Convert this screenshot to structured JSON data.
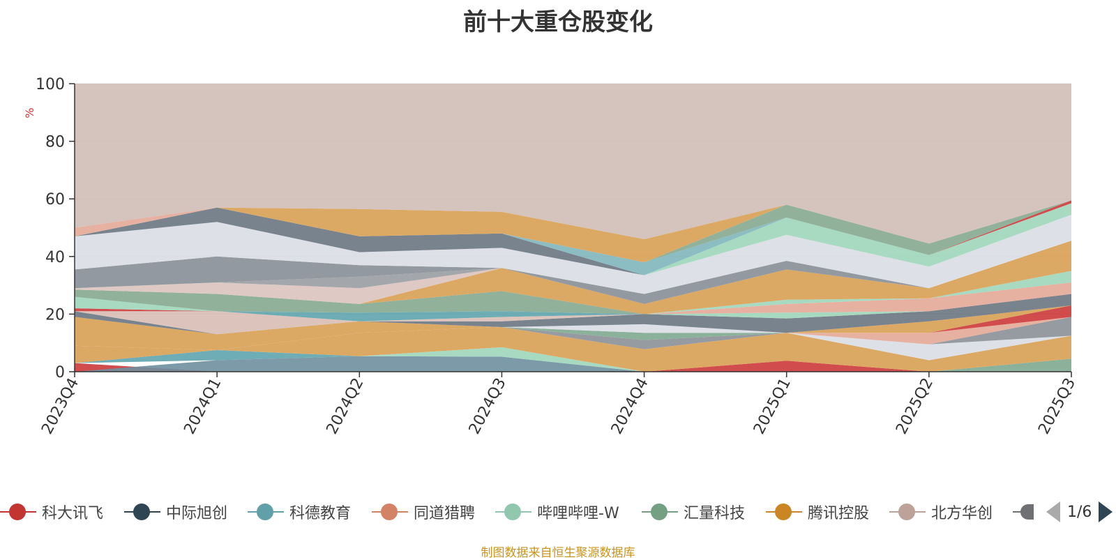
{
  "title": "前十大重仓股变化",
  "source_note": "制图数据来自恒生聚源数据库",
  "pager": {
    "text": "1/6"
  },
  "chart_data": {
    "type": "area",
    "title": "前十大重仓股变化",
    "ylabel": "%",
    "ylim": [
      0,
      100
    ],
    "yticks": [
      0,
      20,
      40,
      60,
      80,
      100
    ],
    "grid": true,
    "legend_placement": "bottom",
    "categories": [
      "2023Q4",
      "2024Q1",
      "2024Q2",
      "2024Q3",
      "2024Q4",
      "2025Q1",
      "2025Q2",
      "2025Q3"
    ],
    "bands": [
      {
        "color": "#cc3a3a",
        "lower": [
          0,
          0,
          0,
          0,
          0,
          0,
          0,
          0
        ],
        "upper": [
          3,
          0,
          0,
          0,
          0,
          3.8,
          0,
          0
        ]
      },
      {
        "color": "#6f8fa0",
        "lower": [
          0,
          0,
          0,
          0,
          0,
          0,
          0,
          0
        ],
        "upper": [
          0,
          4,
          5.4,
          5.2,
          0,
          0,
          0,
          0
        ]
      },
      {
        "color": "#7fa890",
        "lower": [
          0,
          0,
          0,
          0,
          0,
          0,
          0,
          0
        ],
        "upper": [
          0,
          0,
          0,
          0,
          0,
          0,
          0,
          4.5
        ]
      },
      {
        "color": "#5ea4ad",
        "lower": [
          3,
          4,
          5.4,
          5.2,
          0,
          0,
          0,
          0
        ],
        "upper": [
          3,
          7.5,
          5.4,
          5.2,
          0,
          0,
          0,
          0
        ]
      },
      {
        "color": "#9fd6bb",
        "lower": [
          3,
          7.5,
          5.4,
          5.2,
          0,
          0,
          0,
          0
        ],
        "upper": [
          3,
          7.5,
          5.4,
          8.5,
          0,
          0,
          0,
          0
        ]
      },
      {
        "color": "#d8a054",
        "lower": [
          3,
          7.5,
          5.4,
          8.5,
          0,
          3.8,
          0,
          4.5
        ],
        "upper": [
          9,
          7.5,
          13.5,
          15.5,
          7.8,
          13.5,
          4,
          12.5
        ]
      },
      {
        "color": "#e4a898",
        "lower": [
          9,
          7.5,
          13.5,
          15.5,
          7.8,
          13.5,
          4,
          12.5
        ],
        "upper": [
          9,
          7.5,
          13.5,
          15.5,
          7.8,
          13.5,
          4,
          12.5
        ]
      },
      {
        "color": "#d9dde3",
        "lower": [
          9,
          7.5,
          13.5,
          15.5,
          7.8,
          13.5,
          4,
          12.5
        ],
        "upper": [
          9,
          7.5,
          13.5,
          15.5,
          7.8,
          13.5,
          9.5,
          12.5
        ]
      },
      {
        "color": "#8a9097",
        "lower": [
          9,
          7.5,
          13.5,
          15.5,
          7.8,
          13.5,
          9.5,
          12.5
        ],
        "upper": [
          9,
          7.5,
          13.5,
          15.5,
          11,
          13.5,
          9.5,
          19
        ]
      },
      {
        "color": "#e4a898",
        "lower": [
          9,
          7.5,
          13.5,
          15.5,
          11,
          13.5,
          9.5,
          19
        ],
        "upper": [
          9,
          7.5,
          13.5,
          15.5,
          11,
          13.5,
          13.5,
          19
        ]
      },
      {
        "color": "#cc3a3a",
        "lower": [
          9,
          7.5,
          13.5,
          15.5,
          11,
          13.5,
          13.5,
          19
        ],
        "upper": [
          9,
          7.5,
          13.5,
          15.5,
          11,
          13.5,
          13.5,
          23
        ]
      },
      {
        "color": "#d8a054",
        "lower": [
          9,
          7.5,
          13.5,
          15.5,
          11,
          13.5,
          13.5,
          23
        ],
        "upper": [
          19,
          13,
          17.5,
          15.5,
          11,
          13.5,
          17.5,
          23
        ]
      },
      {
        "color": "#7fa890",
        "lower": [
          19,
          13,
          17.5,
          15.5,
          11,
          13.5,
          17.5,
          23
        ],
        "upper": [
          19,
          13,
          17.5,
          15.5,
          13.5,
          13.5,
          17.5,
          23
        ]
      },
      {
        "color": "#d9dde3",
        "lower": [
          19,
          13,
          17.5,
          15.5,
          13.5,
          13.5,
          17.5,
          23
        ],
        "upper": [
          19,
          13,
          17.5,
          15.5,
          16.5,
          13.5,
          17.5,
          23
        ]
      },
      {
        "color": "#6a7682",
        "lower": [
          19,
          13,
          17.5,
          15.5,
          16.5,
          13.5,
          17.5,
          23
        ],
        "upper": [
          21,
          13,
          17.5,
          17.5,
          20,
          18.5,
          21,
          27
        ]
      },
      {
        "color": "#d8bcb4",
        "lower": [
          21,
          13,
          17.5,
          17.5,
          20,
          18.5,
          21,
          27
        ],
        "upper": [
          21,
          21,
          17.5,
          19,
          20,
          18.5,
          21,
          27
        ]
      },
      {
        "color": "#5ea4ad",
        "lower": [
          21,
          21,
          17.5,
          19,
          20,
          18.5,
          21,
          27
        ],
        "upper": [
          21,
          21,
          20.5,
          21,
          20,
          18.5,
          21,
          27
        ]
      },
      {
        "color": "#cc3a3a",
        "lower": [
          21,
          21,
          20.5,
          21,
          20,
          18.5,
          21,
          27
        ],
        "upper": [
          22,
          21,
          20.5,
          21,
          20,
          18.5,
          21,
          27
        ]
      },
      {
        "color": "#9fd6bb",
        "lower": [
          22,
          21,
          20.5,
          21,
          20,
          18.5,
          21,
          27
        ],
        "upper": [
          26,
          21,
          20.5,
          21,
          20,
          20.5,
          21,
          27
        ]
      },
      {
        "color": "#e4a898",
        "lower": [
          26,
          21,
          20.5,
          21,
          20,
          20.5,
          21,
          27
        ],
        "upper": [
          26,
          21,
          20.5,
          21,
          20,
          23.5,
          25.5,
          31
        ]
      },
      {
        "color": "#9fd6bb",
        "lower": [
          26,
          21,
          20.5,
          21,
          20,
          23.5,
          25.5,
          31
        ],
        "upper": [
          26,
          21,
          20.5,
          21,
          20,
          25,
          25.5,
          35
        ]
      },
      {
        "color": "#86a98f",
        "lower": [
          26,
          21,
          20.5,
          21,
          20,
          25,
          25.5,
          35
        ],
        "upper": [
          28.5,
          27,
          23.5,
          28,
          20,
          25,
          25.5,
          35
        ]
      },
      {
        "color": "#d8a054",
        "lower": [
          28.5,
          27,
          23.5,
          28,
          20,
          25,
          25.5,
          35
        ],
        "upper": [
          28.5,
          27,
          23.5,
          36,
          23.5,
          35.5,
          29,
          45.5
        ]
      },
      {
        "color": "#dcc3be",
        "lower": [
          28.5,
          27,
          23.5,
          36,
          23.5,
          35.5,
          29,
          45.5
        ],
        "upper": [
          29,
          31,
          29,
          36,
          23.5,
          35.5,
          29,
          45.5
        ]
      },
      {
        "color": "#999ca1",
        "lower": [
          29,
          31,
          29,
          36,
          23.5,
          35.5,
          29,
          45.5
        ],
        "upper": [
          29,
          31,
          33,
          36,
          23.5,
          35.5,
          29,
          45.5
        ]
      },
      {
        "color": "#868e96",
        "lower": [
          29,
          31,
          33,
          36,
          23.5,
          35.5,
          29,
          45.5
        ],
        "upper": [
          35.5,
          40,
          37,
          36,
          27,
          38.5,
          29,
          45.5
        ]
      },
      {
        "color": "#d9dde3",
        "lower": [
          35.5,
          40,
          37,
          36,
          27,
          38.5,
          29,
          45.5
        ],
        "upper": [
          47,
          52,
          41.5,
          43,
          33.5,
          47.5,
          36.5,
          54.5
        ]
      },
      {
        "color": "#9fd6bb",
        "lower": [
          47,
          52,
          41.5,
          43,
          33.5,
          47.5,
          36.5,
          54.5
        ],
        "upper": [
          47,
          52,
          41.5,
          43,
          33.5,
          53.5,
          40.5,
          58.5
        ]
      },
      {
        "color": "#6a7682",
        "lower": [
          47,
          52,
          41.5,
          43,
          33.5,
          53.5,
          40.5,
          58.5
        ],
        "upper": [
          47,
          57,
          47,
          48,
          33.5,
          53.5,
          40.5,
          58.5
        ]
      },
      {
        "color": "#7fb6bd",
        "lower": [
          47,
          57,
          47,
          48,
          33.5,
          53.5,
          40.5,
          58.5
        ],
        "upper": [
          47,
          57,
          47,
          48,
          38,
          53.5,
          40.5,
          58.5
        ]
      },
      {
        "color": "#cc3a3a",
        "lower": [
          47,
          57,
          47,
          48,
          38,
          53.5,
          40.5,
          58.5
        ],
        "upper": [
          47,
          57,
          47,
          48,
          38,
          53.5,
          40.5,
          59.5
        ]
      },
      {
        "color": "#86a98f",
        "lower": [
          47,
          57,
          47,
          48,
          38,
          53.5,
          40.5,
          59.5
        ],
        "upper": [
          47,
          57,
          47,
          48,
          38,
          58,
          44.5,
          59.5
        ]
      },
      {
        "color": "#d8a054",
        "lower": [
          47,
          57,
          47,
          48,
          38,
          58,
          44.5,
          59.5
        ],
        "upper": [
          47,
          57,
          56.5,
          55.5,
          46,
          58,
          44.5,
          59.5
        ]
      },
      {
        "color": "#e4a898",
        "lower": [
          47,
          57,
          56.5,
          55.5,
          46,
          58,
          44.5,
          59.5
        ],
        "upper": [
          50,
          57,
          56.5,
          55.5,
          46,
          58,
          44.5,
          59.5
        ]
      },
      {
        "color": "#d0bcb6",
        "lower": [
          50,
          57,
          56.5,
          55.5,
          46,
          58,
          44.5,
          59.5
        ],
        "upper": [
          100,
          100,
          100,
          100,
          100,
          100,
          100,
          100
        ]
      }
    ]
  },
  "legend": [
    {
      "label": "科大讯飞",
      "color": "#c23531"
    },
    {
      "label": "中际旭创",
      "color": "#2f4554"
    },
    {
      "label": "科德教育",
      "color": "#61a0a8"
    },
    {
      "label": "同道猎聘",
      "color": "#d48265"
    },
    {
      "label": "哔哩哔哩-W",
      "color": "#91c7ae"
    },
    {
      "label": "汇量科技",
      "color": "#749f83"
    },
    {
      "label": "腾讯控股",
      "color": "#ca8622"
    },
    {
      "label": "北方华创",
      "color": "#bda29a"
    }
  ],
  "legend_more": {
    "color": "#6e7074"
  }
}
